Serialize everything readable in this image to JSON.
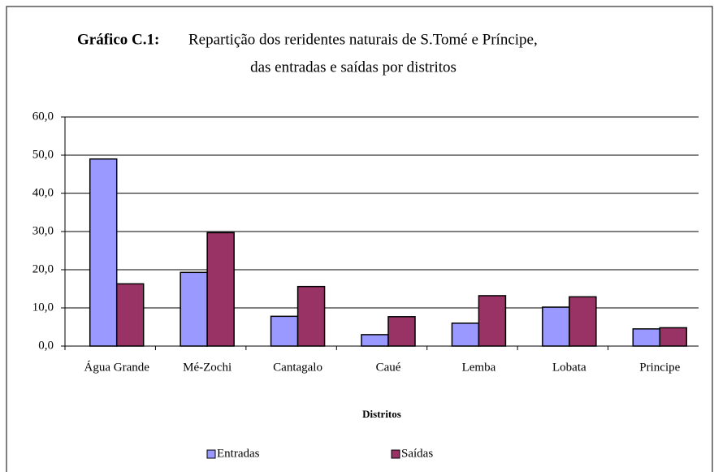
{
  "chart_data": {
    "type": "bar",
    "title_label": "Gráfico C.1:",
    "title": [
      "Repartição dos reridentes naturais de S.Tomé e Príncipe,",
      "das entradas e saídas por distritos"
    ],
    "x_label": "Distritos",
    "categories": [
      "Água Grande",
      "Mé-Zochi",
      "Cantagalo",
      "Caué",
      "Lemba",
      "Lobata",
      "Principe"
    ],
    "series": [
      {
        "name": "Entradas",
        "color": "#9999ff",
        "values": [
          49.0,
          19.3,
          7.8,
          3.0,
          6.0,
          10.2,
          4.5
        ]
      },
      {
        "name": "Saídas",
        "color": "#993366",
        "values": [
          16.3,
          29.7,
          15.6,
          7.7,
          13.2,
          12.9,
          4.8
        ]
      }
    ],
    "ylim": [
      0,
      60
    ],
    "yticks": [
      {
        "value": 0,
        "label": "0,0"
      },
      {
        "value": 10,
        "label": "10,0"
      },
      {
        "value": 20,
        "label": "20,0"
      },
      {
        "value": 30,
        "label": "30,0"
      },
      {
        "value": 40,
        "label": "40,0"
      },
      {
        "value": 50,
        "label": "50,0"
      },
      {
        "value": 60,
        "label": "60,0"
      }
    ],
    "grid": true,
    "legend": "bottom"
  }
}
